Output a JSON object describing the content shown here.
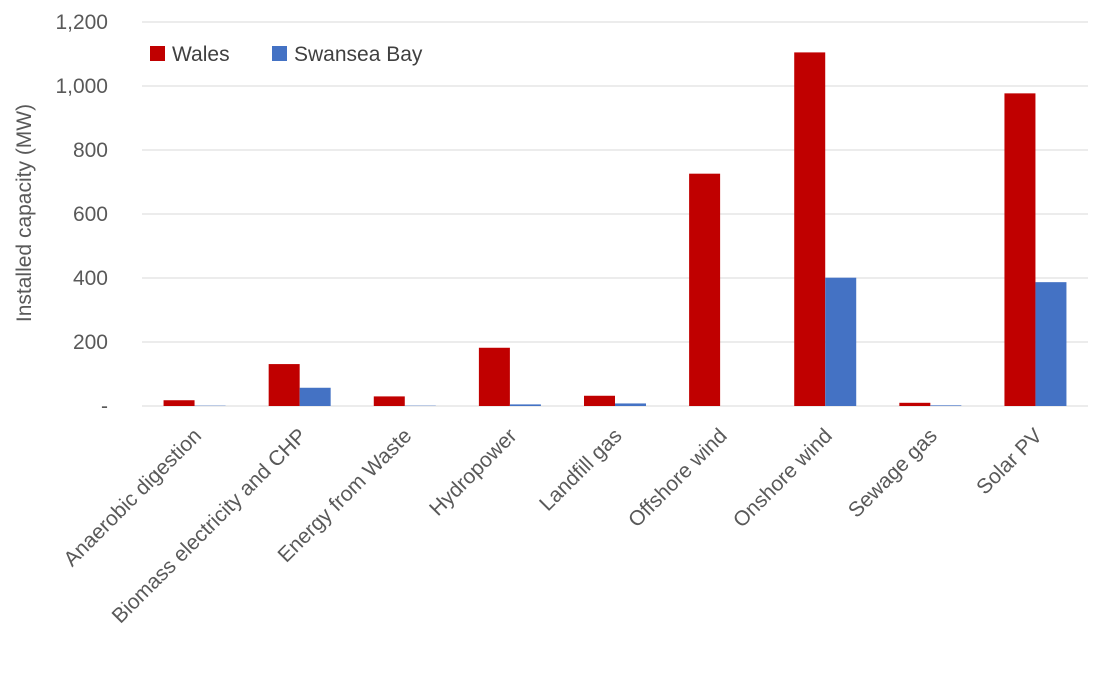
{
  "chart_data": {
    "type": "bar",
    "title": "",
    "xlabel": "",
    "ylabel": "Installed capacity (MW)",
    "ylim": [
      0,
      1200
    ],
    "yticks": [
      0,
      200,
      400,
      600,
      800,
      1000,
      1200
    ],
    "ytick_labels": [
      "-",
      "200",
      "400",
      "600",
      "800",
      "1,000",
      "1,200"
    ],
    "grid": true,
    "legend_position": "top-left",
    "categories": [
      "Anaerobic digestion",
      "Biomass electricity and CHP",
      "Energy from Waste",
      "Hydropower",
      "Landfill gas",
      "Offshore wind",
      "Onshore wind",
      "Sewage gas",
      "Solar PV"
    ],
    "series": [
      {
        "name": "Wales",
        "color": "#c00000",
        "values": [
          18,
          131,
          30,
          182,
          32,
          726,
          1105,
          10,
          977
        ]
      },
      {
        "name": "Swansea Bay",
        "color": "#4472c4",
        "values": [
          1,
          57,
          1,
          5,
          8,
          0,
          401,
          2,
          387
        ]
      }
    ]
  }
}
